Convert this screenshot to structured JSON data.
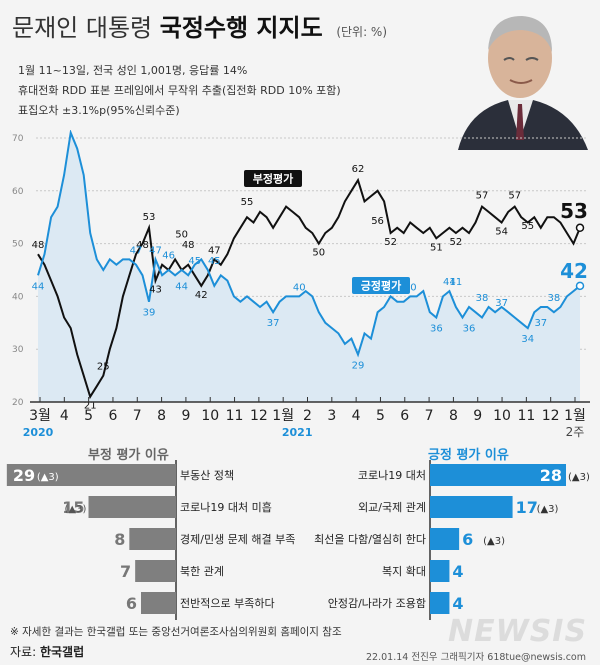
{
  "header": {
    "title_prefix": "문재인 대통령",
    "title_bold": "국정수행 지지도",
    "unit": "(단위: %)",
    "meta_lines": [
      "1월 11~13일, 전국 성인 1,001명, 응답률 14%",
      "휴대전화 RDD 표본 프레임에서 무작위 추출(집전화 RDD 10% 포함)",
      "표집오차 ±3.1%p(95%신뢰수준)"
    ]
  },
  "chart_data": [
    {
      "type": "line",
      "title": "",
      "xlabel": "",
      "ylabel": "",
      "ylim": [
        20,
        70
      ],
      "yticks": [
        "20",
        "30",
        "40",
        "50",
        "60",
        "70"
      ],
      "grid": true,
      "x_labels": [
        "3월",
        "4",
        "5",
        "6",
        "7",
        "8",
        "9",
        "10",
        "11",
        "12",
        "1월",
        "2",
        "3",
        "4",
        "5",
        "6",
        "7",
        "8",
        "9",
        "10",
        "11",
        "12",
        "1월"
      ],
      "year_labels": [
        "2020",
        "2021"
      ],
      "last_label_sub": "2주",
      "series": [
        {
          "name": "부정평가",
          "color": "#111111",
          "values": [
            48,
            46,
            43,
            40,
            36,
            34,
            29,
            25,
            21,
            23,
            25,
            30,
            34,
            40,
            44,
            48,
            50,
            53,
            43,
            46,
            45,
            47,
            45,
            46,
            44,
            42,
            44,
            47,
            46,
            48,
            51,
            53,
            55,
            54,
            56,
            55,
            53,
            55,
            57,
            56,
            55,
            53,
            52,
            50,
            52,
            53,
            55,
            58,
            60,
            62,
            58,
            59,
            60,
            58,
            52,
            53,
            52,
            54,
            53,
            52,
            53,
            51,
            52,
            53,
            52,
            53,
            52,
            54,
            57,
            56,
            55,
            54,
            56,
            57,
            55,
            54,
            55,
            53,
            55,
            55,
            54,
            52,
            50,
            53
          ],
          "labels": [
            {
              "x": "3월",
              "value": 48
            },
            {
              "x": "5",
              "value": 21
            },
            {
              "x": "5",
              "value": 25
            },
            {
              "x": "7",
              "value": 48
            },
            {
              "x": "8",
              "value": 53
            },
            {
              "x": "8",
              "value": 43
            },
            {
              "x": "9",
              "value": 50
            },
            {
              "x": "10",
              "value": 48
            },
            {
              "x": "10",
              "value": 42
            },
            {
              "x": "11",
              "value": 47
            },
            {
              "x": "1월",
              "value": 55
            },
            {
              "x": "3",
              "value": 50
            },
            {
              "x": "4",
              "value": 62
            },
            {
              "x": "5",
              "value": 56
            },
            {
              "x": "6",
              "value": 52
            },
            {
              "x": "8",
              "value": 51
            },
            {
              "x": "9",
              "value": 52
            },
            {
              "x": "10",
              "value": 57
            },
            {
              "x": "11",
              "value": 54
            },
            {
              "x": "11",
              "value": 57
            },
            {
              "x": "12",
              "value": 55
            },
            {
              "x": "1월",
              "value": 53
            }
          ]
        },
        {
          "name": "긍정평가",
          "color": "#1d8fd8",
          "values": [
            44,
            48,
            55,
            57,
            63,
            71,
            68,
            63,
            52,
            47,
            45,
            47,
            46,
            47,
            47,
            46,
            44,
            39,
            47,
            44,
            45,
            44,
            45,
            44,
            46,
            47,
            45,
            42,
            44,
            43,
            40,
            39,
            40,
            39,
            38,
            39,
            37,
            39,
            40,
            40,
            40,
            41,
            40,
            37,
            35,
            34,
            33,
            31,
            32,
            29,
            33,
            32,
            37,
            38,
            40,
            39,
            39,
            40,
            40,
            41,
            37,
            36,
            40,
            41,
            38,
            36,
            38,
            37,
            36,
            38,
            37,
            38,
            37,
            36,
            35,
            34,
            37,
            38,
            38,
            37,
            38,
            40,
            41,
            42
          ],
          "labels": [
            {
              "x": "3월",
              "value": 44
            },
            {
              "x": "4",
              "value": 71
            },
            {
              "x": "7",
              "value": 47
            },
            {
              "x": "7",
              "value": 47
            },
            {
              "x": "8",
              "value": 39
            },
            {
              "x": "8",
              "value": 46
            },
            {
              "x": "9",
              "value": 44
            },
            {
              "x": "10",
              "value": 45
            },
            {
              "x": "11",
              "value": 45
            },
            {
              "x": "2",
              "value": 37
            },
            {
              "x": "3",
              "value": 40
            },
            {
              "x": "5",
              "value": 29
            },
            {
              "x": "7",
              "value": 40
            },
            {
              "x": "8",
              "value": 36
            },
            {
              "x": "8",
              "value": 41
            },
            {
              "x": "9",
              "value": 41
            },
            {
              "x": "9",
              "value": 36
            },
            {
              "x": "10",
              "value": 38
            },
            {
              "x": "11",
              "value": 37
            },
            {
              "x": "11",
              "value": 34
            },
            {
              "x": "12",
              "value": 37
            },
            {
              "x": "12",
              "value": 38
            },
            {
              "x": "1월",
              "value": 42
            }
          ]
        }
      ]
    },
    {
      "type": "bar",
      "orientation": "horizontal",
      "title": "부정 평가 이유",
      "color": "#7f7f7f",
      "categories": [
        "부동산 정책",
        "코로나19 대처 미흡",
        "경제/민생 문제 해결 부족",
        "북한 관계",
        "전반적으로 부족하다"
      ],
      "values": [
        29,
        15,
        8,
        7,
        6
      ],
      "changes": [
        "(▲3)",
        "(▲3)",
        "",
        "",
        ""
      ]
    },
    {
      "type": "bar",
      "orientation": "horizontal",
      "title": "긍정 평가 이유",
      "color": "#1d8fd8",
      "categories": [
        "코로나19 대처",
        "외교/국제 관계",
        "최선을 다함/열심히 한다",
        "복지 확대",
        "안정감/나라가 조용함"
      ],
      "values": [
        28,
        17,
        6,
        4,
        4
      ],
      "changes": [
        "(▲3)",
        "(▲3)",
        "(▲3)",
        "",
        ""
      ]
    }
  ],
  "footer": {
    "note": "※ 자세한 결과는 한국갤럽 또는 중앙선거여론조사심의위원회 홈페이지 참조",
    "source_label": "자료:",
    "source_name": "한국갤럽",
    "credit": "22.01.14 전진우 그래픽기자 618tue@newsis.com",
    "logo": "NEWSIS"
  },
  "colors": {
    "negative": "#111111",
    "positive": "#1d8fd8",
    "positive_fill": "#dce9f3",
    "grid": "#c8c8c8",
    "neg_bar": "#7f7f7f"
  }
}
